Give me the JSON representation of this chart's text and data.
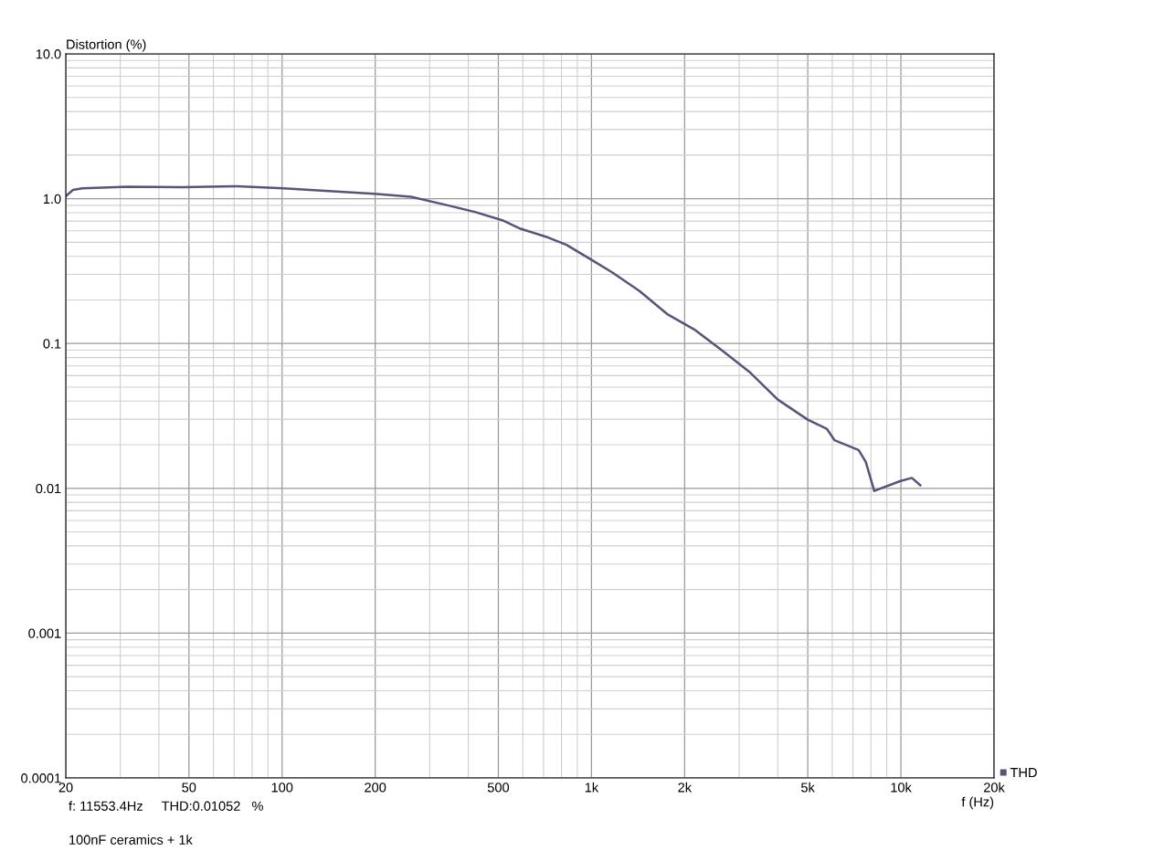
{
  "chart_data": {
    "type": "line",
    "xlabel": "f (Hz)",
    "ylabel": "Distortion (%)",
    "log": "xy",
    "grid": true,
    "legend": "bottom right",
    "xlim": [
      20,
      20000
    ],
    "xticks": [
      {
        "value": 20,
        "label": "20"
      },
      {
        "value": 50,
        "label": "50"
      },
      {
        "value": 100,
        "label": "100"
      },
      {
        "value": 200,
        "label": "200"
      },
      {
        "value": 500,
        "label": "500"
      },
      {
        "value": 1000,
        "label": "1k"
      },
      {
        "value": 2000,
        "label": "2k"
      },
      {
        "value": 5000,
        "label": "5k"
      },
      {
        "value": 10000,
        "label": "10k"
      },
      {
        "value": 20000,
        "label": "20k"
      }
    ],
    "ylim": [
      0.0001,
      10
    ],
    "yticks": [
      {
        "value": 0.0001,
        "label": "0.0001"
      },
      {
        "value": 0.001,
        "label": "0.001"
      },
      {
        "value": 0.01,
        "label": "0.01"
      },
      {
        "value": 0.1,
        "label": "0.1"
      },
      {
        "value": 1,
        "label": "1.0"
      },
      {
        "value": 10,
        "label": "10.0"
      }
    ],
    "x": [
      20,
      21.1,
      22.6,
      31.7,
      47.7,
      71.8,
      101,
      142,
      199,
      261,
      343,
      420,
      515,
      590,
      724,
      830,
      1018,
      1166,
      1430,
      1754,
      2149,
      2636,
      3230,
      4000,
      5000,
      5757,
      6100,
      7300,
      7700,
      8200,
      9930,
      10850,
      11550
    ],
    "series": [
      {
        "name": "THD",
        "color": "#55557a",
        "values": [
          1.04,
          1.15,
          1.18,
          1.21,
          1.2,
          1.22,
          1.18,
          1.13,
          1.08,
          1.03,
          0.9,
          0.81,
          0.71,
          0.62,
          0.54,
          0.48,
          0.37,
          0.31,
          0.23,
          0.16,
          0.125,
          0.09,
          0.064,
          0.041,
          0.0298,
          0.0258,
          0.0215,
          0.0184,
          0.0152,
          0.0096,
          0.0112,
          0.0118,
          0.0105
        ]
      }
    ],
    "annotations": [
      "f: 11553.4Hz     THD:0.01052   %",
      "100nF ceramics + 1k"
    ]
  }
}
